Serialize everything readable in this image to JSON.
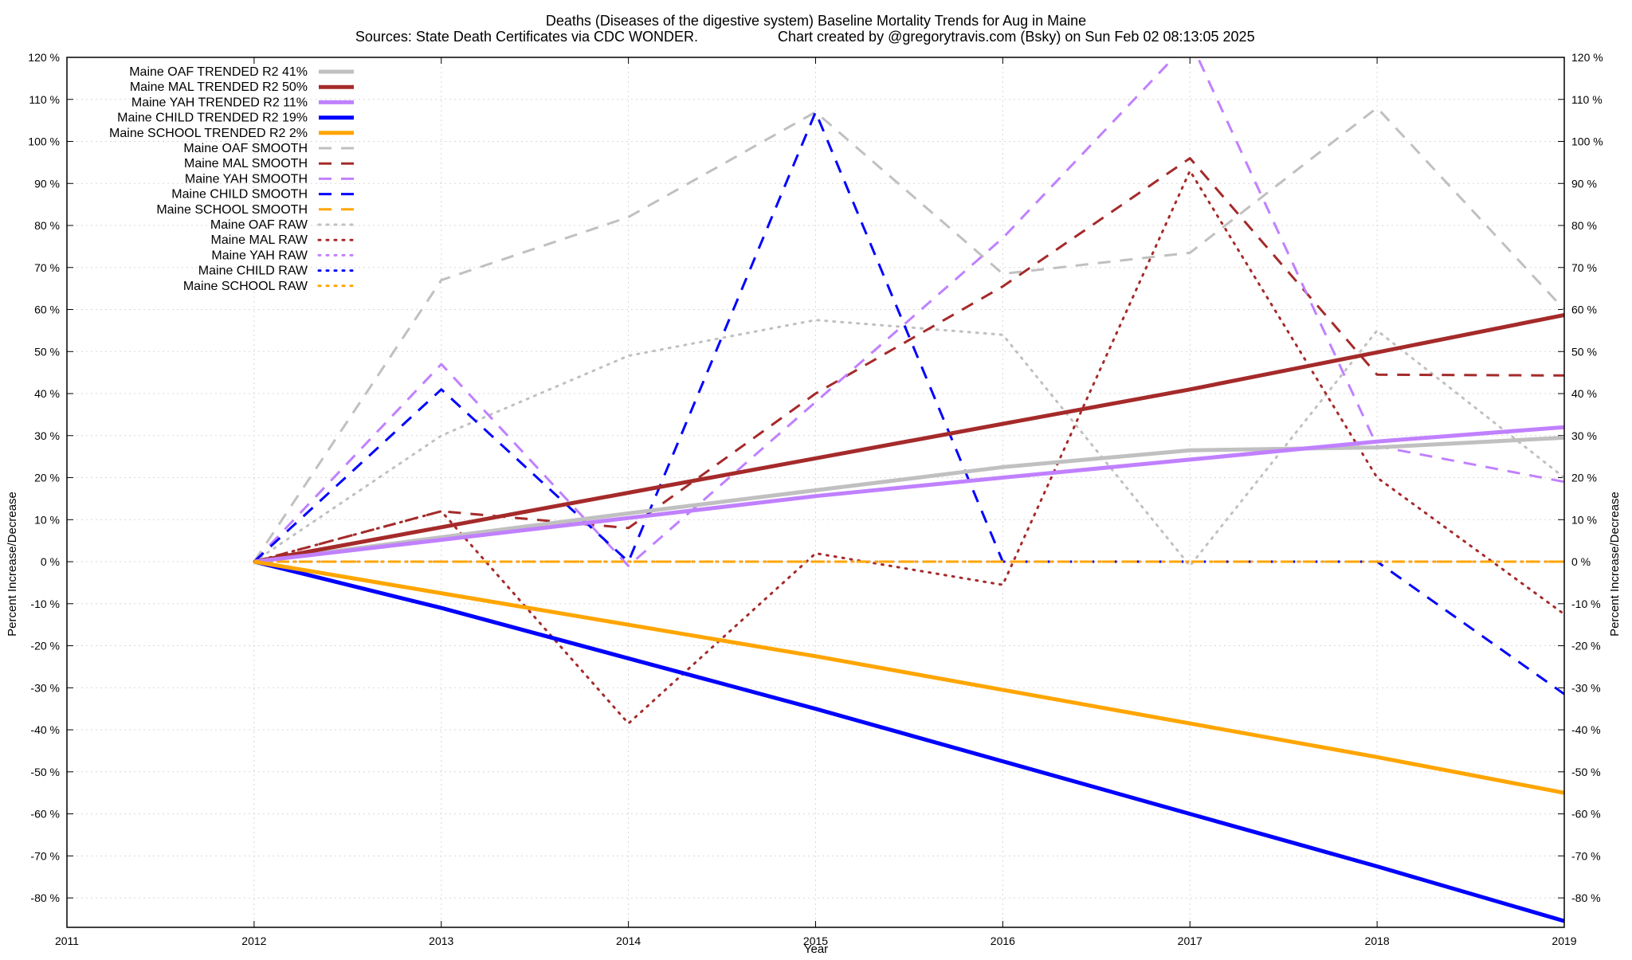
{
  "chart_data": {
    "type": "line",
    "title": "Deaths (Diseases of the digestive system)  Baseline Mortality Trends for Aug in Maine",
    "subtitle_left": "Sources: State Death Certificates via CDC WONDER.",
    "subtitle_right": "Chart created by @gregorytravis.com (Bsky) on Sun Feb 02 08:13:05 2025",
    "xlabel": "Year",
    "ylabel": "Percent Increase/Decrease",
    "xlim": [
      2011,
      2019
    ],
    "ylim": [
      -87,
      120
    ],
    "x_ticks": [
      2011,
      2012,
      2013,
      2014,
      2015,
      2016,
      2017,
      2018,
      2019
    ],
    "y_ticks": [
      -80,
      -70,
      -60,
      -50,
      -40,
      -30,
      -20,
      -10,
      0,
      10,
      20,
      30,
      40,
      50,
      60,
      70,
      80,
      90,
      100,
      110,
      120
    ],
    "y_tick_suffix": " %",
    "grid": true,
    "legend_position": "top-left",
    "x": [
      2012,
      2013,
      2014,
      2015,
      2016,
      2017,
      2018,
      2019
    ],
    "series": [
      {
        "name": "Maine OAF TRENDED R2  41%",
        "style": "solid",
        "width": 5,
        "color": "#c0c0c0",
        "values": [
          0,
          5.8,
          11.5,
          17,
          22.5,
          26.5,
          27.2,
          29.5
        ]
      },
      {
        "name": "Maine MAL TRENDED R2  50%",
        "style": "solid",
        "width": 5,
        "color": "#a52a2a",
        "values": [
          0,
          8.2,
          16.4,
          24.6,
          32.8,
          41,
          49.8,
          58.7
        ]
      },
      {
        "name": "Maine YAH TRENDED R2  11%",
        "style": "solid",
        "width": 5,
        "color": "#c080ff",
        "values": [
          0,
          5.2,
          10.4,
          15.6,
          20,
          24.3,
          28.6,
          32
        ]
      },
      {
        "name": "Maine CHILD TRENDED R2  19%",
        "style": "solid",
        "width": 5,
        "color": "#0000ff",
        "values": [
          0,
          -11,
          -23,
          -35,
          -47.5,
          -60,
          -72.5,
          -85.5
        ]
      },
      {
        "name": "Maine SCHOOL TRENDED R2  2%",
        "style": "solid",
        "width": 5,
        "color": "#ffa500",
        "values": [
          0,
          -7.5,
          -15,
          -22.5,
          -30.5,
          -38.5,
          -46.5,
          -55
        ]
      },
      {
        "name": "Maine OAF SMOOTH",
        "style": "dashed",
        "width": 3,
        "color": "#c0c0c0",
        "values": [
          0,
          67,
          82,
          107,
          68.5,
          73.5,
          108,
          60
        ]
      },
      {
        "name": "Maine MAL SMOOTH",
        "style": "dashed",
        "width": 3,
        "color": "#a52a2a",
        "values": [
          0,
          12,
          8,
          40,
          65.5,
          96,
          44.5,
          44.3
        ]
      },
      {
        "name": "Maine YAH SMOOTH",
        "style": "dashed",
        "width": 3,
        "color": "#c080ff",
        "values": [
          0,
          47,
          -1,
          38,
          77,
          124,
          27.5,
          19
        ]
      },
      {
        "name": "Maine CHILD SMOOTH",
        "style": "dashed",
        "width": 3,
        "color": "#0000ff",
        "values": [
          0,
          41,
          0,
          107,
          0,
          0,
          0,
          -31.5
        ]
      },
      {
        "name": "Maine SCHOOL SMOOTH",
        "style": "dashed",
        "width": 3,
        "color": "#ffa500",
        "values": [
          0,
          0,
          0,
          0,
          0,
          0,
          0,
          0
        ]
      },
      {
        "name": "Maine OAF RAW",
        "style": "dotted",
        "width": 3,
        "color": "#c0c0c0",
        "values": [
          0,
          30,
          49,
          57.5,
          54,
          -1,
          55,
          20
        ]
      },
      {
        "name": "Maine MAL RAW",
        "style": "dotted",
        "width": 3,
        "color": "#a52a2a",
        "values": [
          0,
          12,
          -38.5,
          2,
          -5.5,
          93,
          20,
          -12.5
        ]
      },
      {
        "name": "Maine YAH RAW",
        "style": "dotted",
        "width": 3,
        "color": "#c080ff",
        "values": [
          0,
          0,
          0,
          0,
          0,
          0,
          0,
          0
        ]
      },
      {
        "name": "Maine CHILD RAW",
        "style": "dotted",
        "width": 3,
        "color": "#0000ff",
        "values": [
          0,
          0,
          0,
          0,
          0,
          0,
          0,
          0
        ]
      },
      {
        "name": "Maine SCHOOL RAW",
        "style": "dotted",
        "width": 3,
        "color": "#ffa500",
        "values": [
          0,
          0,
          0,
          0,
          0,
          0,
          0,
          0
        ]
      }
    ]
  }
}
